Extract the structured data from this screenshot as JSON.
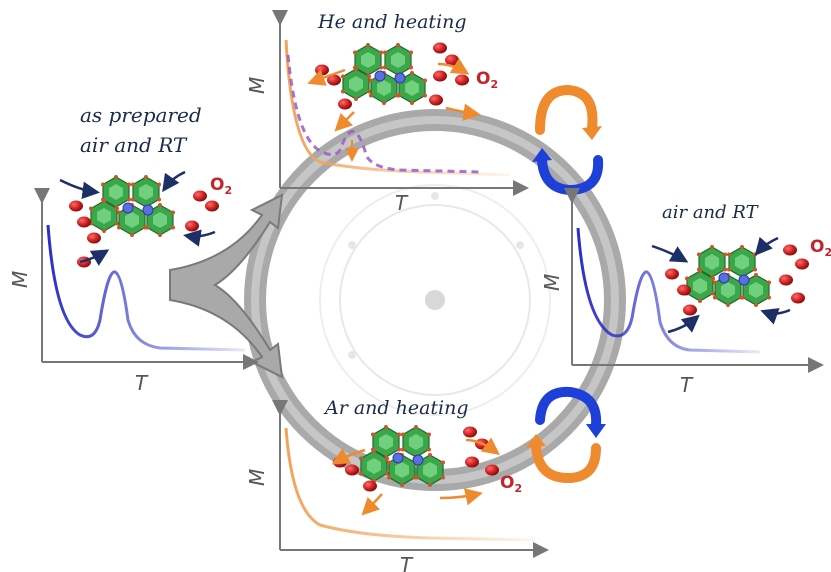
{
  "states": {
    "as_prepared": {
      "line1": "as prepared",
      "line2": "air and RT"
    },
    "he_heating": {
      "label": "He and heating"
    },
    "air_rt": {
      "label": "air and RT"
    },
    "ar_heating": {
      "label": "Ar and heating"
    }
  },
  "axes": {
    "y_label": "M",
    "x_label": "T"
  },
  "gas": {
    "oxygen": "O",
    "oxygen_sub": "2"
  },
  "colors": {
    "blue_curve": "#2a2fc7",
    "orange_curve": "#f0a45a",
    "purple_dash": "#9b59c9",
    "cycle_orange": "#ef8a2e",
    "cycle_blue": "#1f3fd9",
    "ring_gray": "#8d8d8d",
    "o2_red": "#cc1f1f",
    "hexagon_green": "#3aa84a",
    "arrow_navy": "#1c2f66"
  },
  "icons": [
    "molecule-cluster",
    "o2-molecule",
    "reversible-cycle-arrow",
    "three-way-arrow"
  ]
}
